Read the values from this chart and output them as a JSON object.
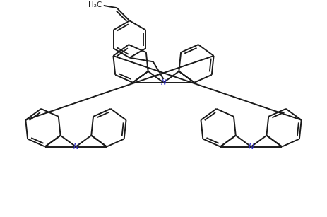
{
  "background_color": "#ffffff",
  "line_color": "#1a1a1a",
  "N_color": "#3333cc",
  "line_width": 1.4,
  "figsize": [
    4.63,
    3.07
  ],
  "dpi": 100,
  "xlim": [
    0,
    9.26
  ],
  "ylim": [
    0,
    6.14
  ]
}
